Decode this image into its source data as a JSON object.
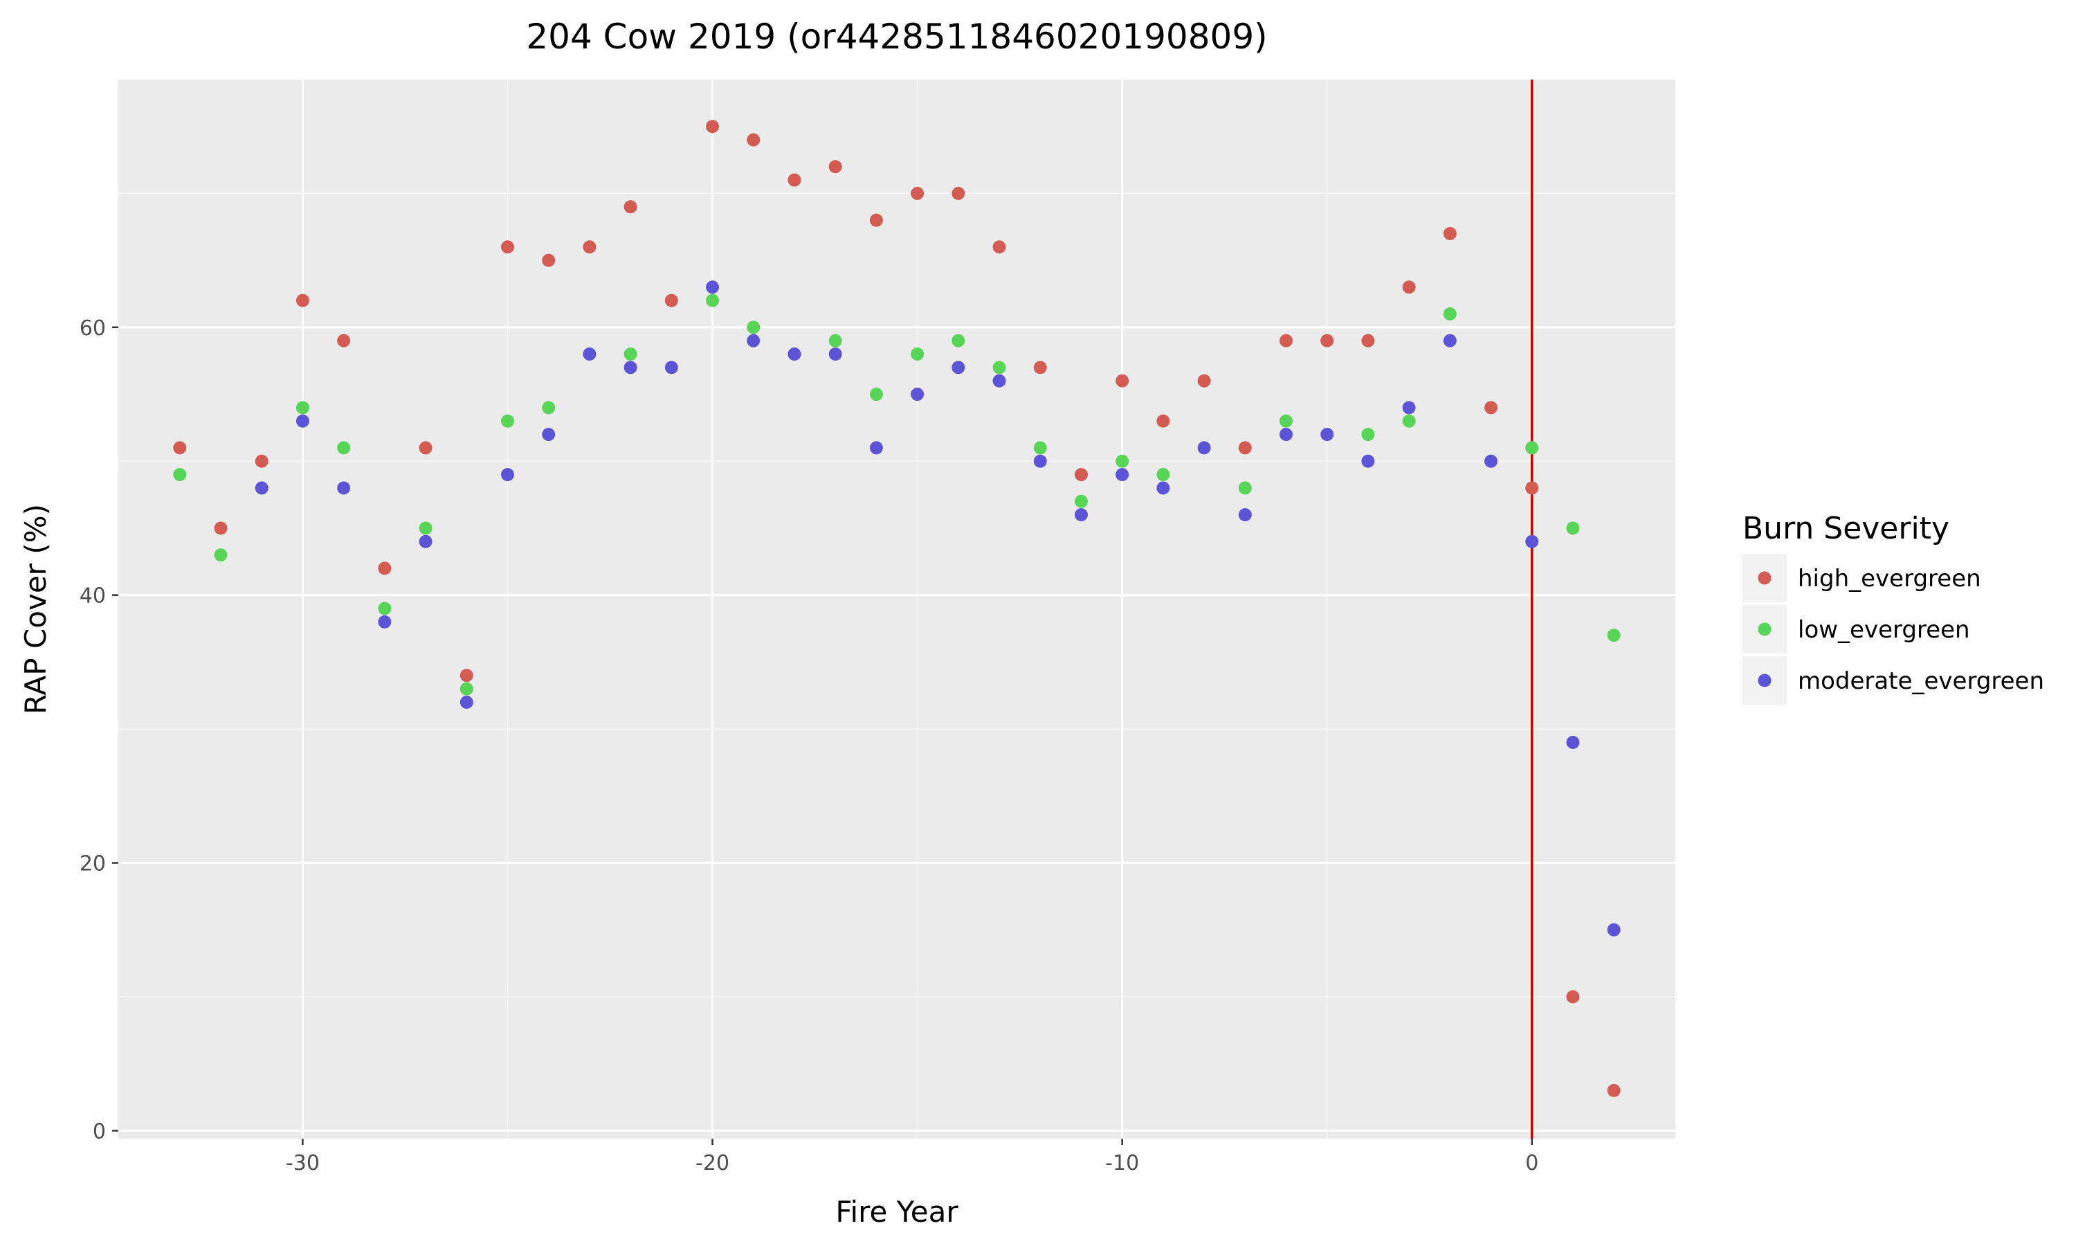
{
  "chart_data": {
    "type": "scatter",
    "title": "204 Cow 2019 (or4428511846020190809)",
    "xlabel": "Fire Year",
    "ylabel": "RAP Cover (%)",
    "xlim": [
      -34.5,
      3.5
    ],
    "ylim": [
      -0.6,
      78.5
    ],
    "x_ticks": [
      -30,
      -20,
      -10,
      0
    ],
    "y_ticks": [
      0,
      20,
      40,
      60
    ],
    "x_tick_labels": [
      "-30",
      "-20",
      "-10",
      "0"
    ],
    "y_tick_labels": [
      "0",
      "20",
      "40",
      "60"
    ],
    "grid": true,
    "legend": {
      "title": "Burn Severity",
      "position": "right"
    },
    "vline": {
      "x": 0,
      "color": "#cc0000"
    },
    "series": [
      {
        "name": "high_evergreen",
        "color": "#d45b51",
        "points": [
          [
            -33,
            51
          ],
          [
            -32,
            45
          ],
          [
            -31,
            50
          ],
          [
            -30,
            62
          ],
          [
            -29,
            59
          ],
          [
            -28,
            42
          ],
          [
            -27,
            51
          ],
          [
            -26,
            34
          ],
          [
            -25,
            66
          ],
          [
            -24,
            65
          ],
          [
            -23,
            66
          ],
          [
            -22,
            69
          ],
          [
            -21,
            62
          ],
          [
            -20,
            75
          ],
          [
            -19,
            74
          ],
          [
            -18,
            71
          ],
          [
            -17,
            72
          ],
          [
            -16,
            68
          ],
          [
            -15,
            70
          ],
          [
            -14,
            70
          ],
          [
            -13,
            66
          ],
          [
            -12,
            57
          ],
          [
            -11,
            49
          ],
          [
            -10,
            56
          ],
          [
            -9,
            53
          ],
          [
            -8,
            56
          ],
          [
            -7,
            51
          ],
          [
            -6,
            59
          ],
          [
            -5,
            59
          ],
          [
            -4,
            59
          ],
          [
            -3,
            63
          ],
          [
            -2,
            67
          ],
          [
            -1,
            54
          ],
          [
            0,
            48
          ],
          [
            1,
            10
          ],
          [
            2,
            3
          ]
        ]
      },
      {
        "name": "low_evergreen",
        "color": "#56d556",
        "points": [
          [
            -33,
            49
          ],
          [
            -32,
            43
          ],
          [
            -30,
            54
          ],
          [
            -29,
            51
          ],
          [
            -28,
            39
          ],
          [
            -27,
            45
          ],
          [
            -26,
            33
          ],
          [
            -25,
            53
          ],
          [
            -24,
            54
          ],
          [
            -22,
            58
          ],
          [
            -20,
            62
          ],
          [
            -19,
            60
          ],
          [
            -17,
            59
          ],
          [
            -16,
            55
          ],
          [
            -15,
            58
          ],
          [
            -14,
            59
          ],
          [
            -13,
            57
          ],
          [
            -12,
            51
          ],
          [
            -11,
            47
          ],
          [
            -10,
            50
          ],
          [
            -9,
            49
          ],
          [
            -7,
            48
          ],
          [
            -6,
            53
          ],
          [
            -4,
            52
          ],
          [
            -3,
            53
          ],
          [
            -2,
            61
          ],
          [
            0,
            51
          ],
          [
            1,
            45
          ],
          [
            2,
            37
          ]
        ]
      },
      {
        "name": "moderate_evergreen",
        "color": "#5c54d6",
        "points": [
          [
            -31,
            48
          ],
          [
            -30,
            53
          ],
          [
            -29,
            48
          ],
          [
            -28,
            38
          ],
          [
            -27,
            44
          ],
          [
            -26,
            32
          ],
          [
            -25,
            49
          ],
          [
            -24,
            52
          ],
          [
            -23,
            58
          ],
          [
            -22,
            57
          ],
          [
            -21,
            57
          ],
          [
            -20,
            63
          ],
          [
            -19,
            59
          ],
          [
            -18,
            58
          ],
          [
            -17,
            58
          ],
          [
            -16,
            51
          ],
          [
            -15,
            55
          ],
          [
            -14,
            57
          ],
          [
            -13,
            56
          ],
          [
            -12,
            50
          ],
          [
            -11,
            46
          ],
          [
            -10,
            49
          ],
          [
            -9,
            48
          ],
          [
            -8,
            51
          ],
          [
            -7,
            46
          ],
          [
            -6,
            52
          ],
          [
            -5,
            52
          ],
          [
            -4,
            50
          ],
          [
            -3,
            54
          ],
          [
            -2,
            59
          ],
          [
            -1,
            50
          ],
          [
            0,
            44
          ],
          [
            1,
            29
          ],
          [
            2,
            15
          ]
        ]
      }
    ]
  }
}
